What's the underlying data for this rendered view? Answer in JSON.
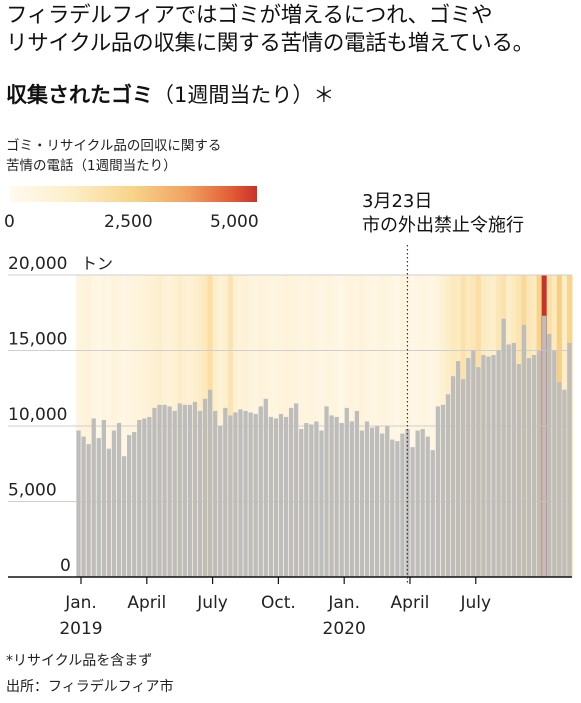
{
  "headline": {
    "line1": "フィラデルフィアではゴミが増えるにつれ、ゴミや",
    "line2": "リサイクル品の収集に関する苦情の電話も増えている。"
  },
  "subtitle": {
    "bold": "収集されたゴミ",
    "rest": "（1週間当たり）＊"
  },
  "legend": {
    "title_line1": "ゴミ・リサイクル品の回収に関する",
    "title_line2": "苦情の電話（1週間当たり）",
    "ticks": [
      "0",
      "2,500",
      "5,000"
    ],
    "colors": [
      "#fffaf0",
      "#f8d38a",
      "#c9322a"
    ]
  },
  "annotation": {
    "line1": "3月23日",
    "line2": "市の外出禁止令施行"
  },
  "footnotes": {
    "note": "*リサイクル品を含まず",
    "source": "出所：フィラデルフィア市"
  },
  "chart_data": {
    "type": "bar",
    "ylabel_unit": "トン",
    "ylim": [
      0,
      20000
    ],
    "y_ticks": [
      "0",
      "5,000",
      "10,000",
      "15,000",
      "20,000"
    ],
    "x_labels": [
      {
        "label": "Jan.",
        "year": "2019"
      },
      {
        "label": "April",
        "year": ""
      },
      {
        "label": "July",
        "year": ""
      },
      {
        "label": "Oct.",
        "year": ""
      },
      {
        "label": "Jan.",
        "year": "2020"
      },
      {
        "label": "April",
        "year": ""
      },
      {
        "label": "July",
        "year": ""
      }
    ],
    "weeks_start": "2019-01-05",
    "bar_color": "#bdbdbd",
    "values": [
      9700,
      9300,
      8800,
      10500,
      9200,
      10400,
      8500,
      9700,
      10200,
      8000,
      9400,
      9600,
      10400,
      10500,
      10600,
      11200,
      11400,
      11400,
      11300,
      11000,
      11500,
      11400,
      11400,
      11600,
      11000,
      11800,
      12400,
      11000,
      10000,
      11200,
      10700,
      10900,
      11100,
      11000,
      10900,
      10800,
      11300,
      11800,
      10600,
      10500,
      10800,
      10600,
      11200,
      11500,
      9800,
      10200,
      10100,
      10300,
      9700,
      11300,
      10700,
      10600,
      10200,
      11200,
      10300,
      11000,
      9700,
      10300,
      9900,
      10000,
      9500,
      10000,
      9100,
      9000,
      9500,
      9800,
      8600,
      9700,
      9800,
      9300,
      8400,
      11300,
      11400,
      12100,
      13300,
      14300,
      13100,
      14500,
      15000,
      13900,
      14700,
      14600,
      14700,
      15000,
      17100,
      15400,
      15500,
      14100,
      16700,
      14500,
      14700,
      15000,
      17300,
      16100,
      15000,
      12900,
      12400,
      15500
    ],
    "complaints": [
      500,
      600,
      700,
      400,
      300,
      500,
      450,
      600,
      550,
      400,
      500,
      600,
      650,
      700,
      800,
      900,
      1100,
      800,
      700,
      900,
      1200,
      1000,
      900,
      1100,
      1300,
      1500,
      2000,
      1200,
      800,
      1000,
      1700,
      900,
      700,
      800,
      600,
      500,
      700,
      650,
      550,
      500,
      600,
      700,
      650,
      600,
      500,
      550,
      600,
      500,
      450,
      500,
      550,
      400,
      350,
      500,
      600,
      550,
      700,
      500,
      450,
      400,
      600,
      500,
      400,
      350,
      600,
      500,
      300,
      450,
      500,
      450,
      400,
      600,
      900,
      1200,
      1500,
      1400,
      1800,
      1500,
      1600,
      2000,
      1400,
      1300,
      1200,
      1600,
      1800,
      1200,
      1500,
      1700,
      2200,
      1600,
      1400,
      2500,
      5000,
      1900,
      1500,
      2600,
      1200,
      2400
    ]
  }
}
